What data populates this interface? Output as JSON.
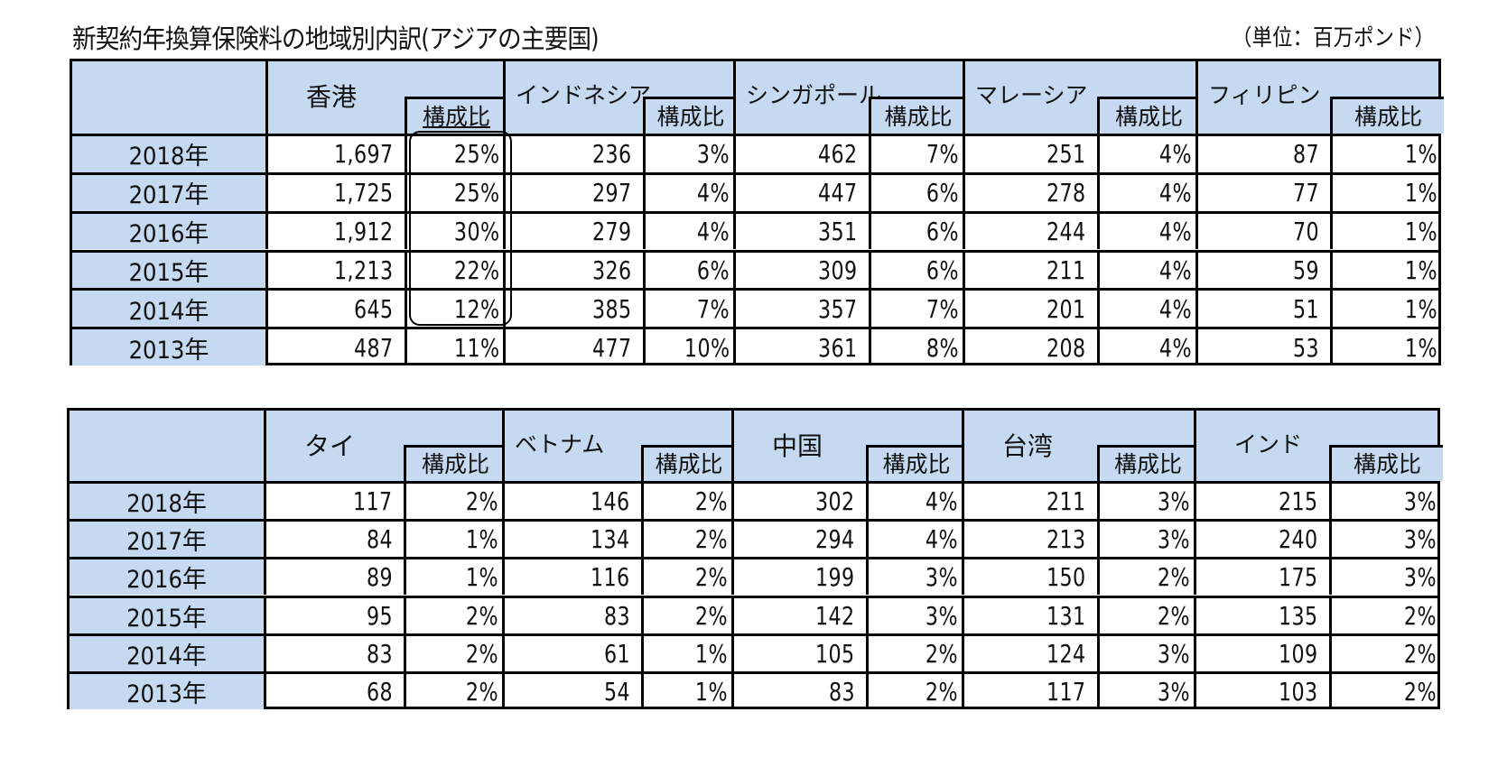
{
  "title": "新契約年換算保険料の地域別内訳(アジアの主要国)",
  "unit": "（単位：百万ポンド）",
  "ratio_label": "構成比",
  "years": [
    "2018年",
    "2017年",
    "2016年",
    "2015年",
    "2014年",
    "2013年"
  ],
  "table1": {
    "countries": [
      {
        "name": "香港",
        "values": [
          "1,697",
          "1,725",
          "1,912",
          "1,213",
          "645",
          "487"
        ],
        "ratios": [
          "25%",
          "25%",
          "30%",
          "22%",
          "12%",
          "11%"
        ]
      },
      {
        "name": "インドネシア",
        "values": [
          "236",
          "297",
          "279",
          "326",
          "385",
          "477"
        ],
        "ratios": [
          "3%",
          "4%",
          "4%",
          "6%",
          "7%",
          "10%"
        ]
      },
      {
        "name": "シンガポール",
        "values": [
          "462",
          "447",
          "351",
          "309",
          "357",
          "361"
        ],
        "ratios": [
          "7%",
          "6%",
          "6%",
          "6%",
          "7%",
          "8%"
        ]
      },
      {
        "name": "マレーシア",
        "values": [
          "251",
          "278",
          "244",
          "211",
          "201",
          "208"
        ],
        "ratios": [
          "4%",
          "4%",
          "4%",
          "4%",
          "4%",
          "4%"
        ]
      },
      {
        "name": "フィリピン",
        "values": [
          "87",
          "77",
          "70",
          "59",
          "51",
          "53"
        ],
        "ratios": [
          "1%",
          "1%",
          "1%",
          "1%",
          "1%",
          "1%"
        ]
      }
    ]
  },
  "table2": {
    "countries": [
      {
        "name": "タイ",
        "values": [
          "117",
          "84",
          "89",
          "95",
          "83",
          "68"
        ],
        "ratios": [
          "2%",
          "1%",
          "1%",
          "2%",
          "2%",
          "2%"
        ]
      },
      {
        "name": "ベトナム",
        "values": [
          "146",
          "134",
          "116",
          "83",
          "61",
          "54"
        ],
        "ratios": [
          "2%",
          "2%",
          "2%",
          "2%",
          "1%",
          "1%"
        ]
      },
      {
        "name": "中国",
        "values": [
          "302",
          "294",
          "199",
          "142",
          "105",
          "83"
        ],
        "ratios": [
          "4%",
          "4%",
          "3%",
          "3%",
          "2%",
          "2%"
        ]
      },
      {
        "name": "台湾",
        "values": [
          "211",
          "213",
          "150",
          "131",
          "124",
          "117"
        ],
        "ratios": [
          "3%",
          "3%",
          "2%",
          "2%",
          "3%",
          "3%"
        ]
      },
      {
        "name": "インド",
        "values": [
          "215",
          "240",
          "175",
          "135",
          "109",
          "103"
        ],
        "ratios": [
          "3%",
          "3%",
          "3%",
          "2%",
          "2%",
          "2%"
        ]
      }
    ]
  },
  "colors": {
    "header_fill": "#c5d9f1",
    "border": "#000000"
  }
}
